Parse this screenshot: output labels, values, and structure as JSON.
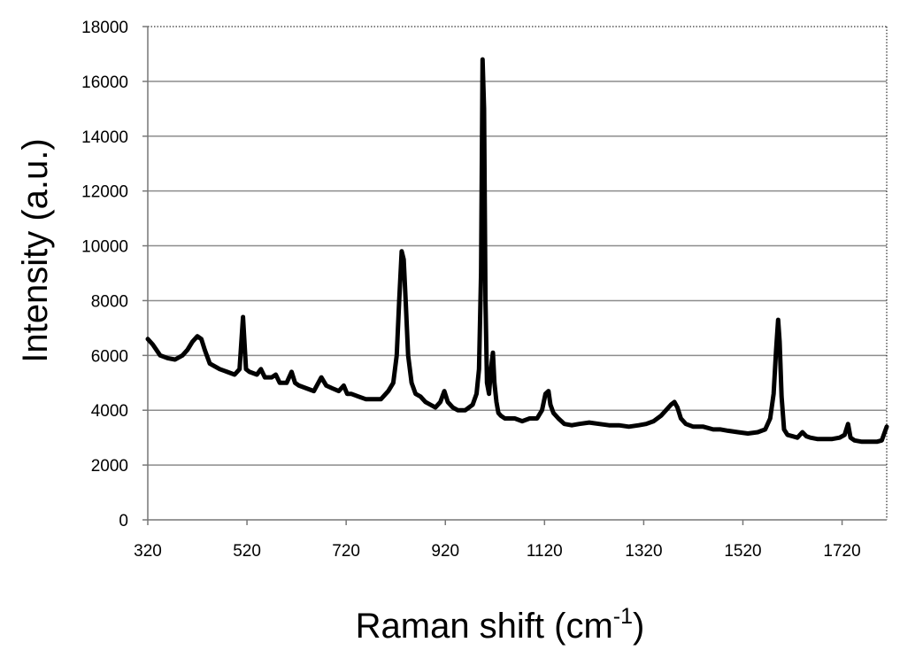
{
  "chart_data": {
    "type": "line",
    "title": "",
    "xlabel": "Raman shift (cm",
    "xlabel_superscript": "-1",
    "xlabel_suffix": ")",
    "ylabel": "Intensity (a.u.)",
    "xlim": [
      320,
      1810
    ],
    "ylim": [
      0,
      18000
    ],
    "x_ticks": [
      320,
      520,
      720,
      920,
      1120,
      1320,
      1520,
      1720
    ],
    "y_ticks": [
      0,
      2000,
      4000,
      6000,
      8000,
      10000,
      12000,
      14000,
      16000,
      18000
    ],
    "grid": "horizontal",
    "line_color": "#000000",
    "series": [
      {
        "x": [
          320,
          330,
          345,
          360,
          375,
          390,
          400,
          410,
          420,
          428,
          435,
          445,
          455,
          465,
          480,
          495,
          505,
          512,
          518,
          525,
          540,
          548,
          556,
          570,
          578,
          586,
          600,
          610,
          617,
          625,
          640,
          655,
          670,
          680,
          692,
          705,
          715,
          722,
          730,
          745,
          760,
          775,
          790,
          805,
          815,
          822,
          827,
          832,
          836,
          840,
          845,
          852,
          860,
          870,
          880,
          890,
          900,
          910,
          918,
          925,
          935,
          945,
          960,
          975,
          983,
          988,
          992,
          995,
          998,
          1001,
          1004,
          1008,
          1012,
          1016,
          1019,
          1023,
          1027,
          1032,
          1040,
          1050,
          1060,
          1075,
          1090,
          1105,
          1115,
          1122,
          1128,
          1132,
          1138,
          1148,
          1160,
          1175,
          1190,
          1210,
          1230,
          1250,
          1270,
          1290,
          1310,
          1325,
          1340,
          1355,
          1365,
          1375,
          1382,
          1388,
          1395,
          1405,
          1420,
          1440,
          1460,
          1475,
          1490,
          1510,
          1530,
          1550,
          1565,
          1575,
          1582,
          1587,
          1591,
          1594,
          1598,
          1603,
          1610,
          1620,
          1630,
          1640,
          1648,
          1656,
          1670,
          1685,
          1700,
          1715,
          1725,
          1732,
          1737,
          1745,
          1760,
          1775,
          1790,
          1800,
          1810
        ],
        "values": [
          6600,
          6400,
          6000,
          5900,
          5850,
          6000,
          6200,
          6500,
          6700,
          6600,
          6200,
          5700,
          5600,
          5500,
          5400,
          5300,
          5500,
          7400,
          5500,
          5400,
          5300,
          5500,
          5200,
          5200,
          5300,
          5000,
          5000,
          5400,
          5000,
          4900,
          4800,
          4700,
          5200,
          4900,
          4800,
          4700,
          4900,
          4600,
          4600,
          4500,
          4400,
          4400,
          4400,
          4700,
          5000,
          6000,
          8000,
          9800,
          9500,
          8000,
          6000,
          5000,
          4600,
          4500,
          4300,
          4200,
          4100,
          4300,
          4700,
          4300,
          4100,
          4000,
          4000,
          4200,
          4600,
          5500,
          9000,
          16800,
          15000,
          8000,
          5000,
          4600,
          5500,
          6100,
          5000,
          4300,
          3900,
          3800,
          3700,
          3700,
          3700,
          3600,
          3700,
          3700,
          4000,
          4600,
          4700,
          4200,
          3900,
          3700,
          3500,
          3450,
          3500,
          3550,
          3500,
          3450,
          3450,
          3400,
          3450,
          3500,
          3600,
          3800,
          4000,
          4200,
          4300,
          4100,
          3700,
          3500,
          3400,
          3400,
          3300,
          3300,
          3250,
          3200,
          3150,
          3200,
          3300,
          3700,
          4600,
          6200,
          7300,
          6500,
          4500,
          3300,
          3100,
          3050,
          3000,
          3200,
          3050,
          3000,
          2950,
          2950,
          2950,
          3000,
          3100,
          3500,
          3000,
          2900,
          2850,
          2850,
          2850,
          2900,
          3400
        ]
      }
    ]
  }
}
